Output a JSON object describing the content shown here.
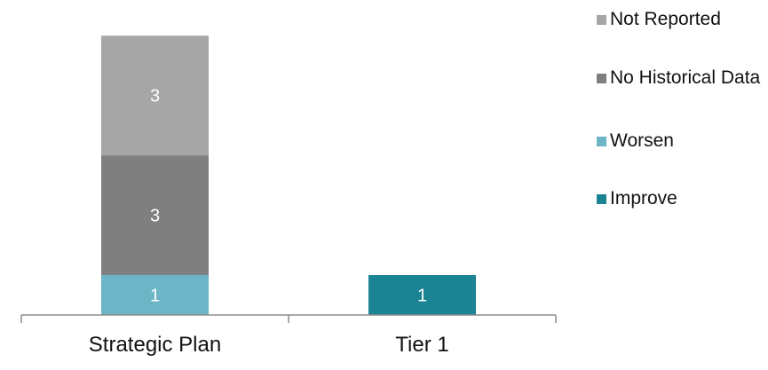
{
  "chart_data": {
    "type": "bar",
    "stacked": true,
    "categories": [
      "Strategic Plan",
      "Tier 1"
    ],
    "series": [
      {
        "name": "Improve",
        "values": [
          0,
          1
        ],
        "color": "#1b8494"
      },
      {
        "name": "Worsen",
        "values": [
          1,
          0
        ],
        "color": "#6bb5c7"
      },
      {
        "name": "No Historical Data",
        "values": [
          3,
          0
        ],
        "color": "#7f7f7f"
      },
      {
        "name": "Not Reported",
        "values": [
          3,
          0
        ],
        "color": "#a6a6a6"
      }
    ],
    "legend_order": [
      "Not Reported",
      "No Historical Data",
      "Worsen",
      "Improve"
    ],
    "legend_position": "right",
    "ylim": [
      0,
      7.25
    ],
    "grid": false,
    "title": "",
    "xlabel": "",
    "ylabel": ""
  }
}
